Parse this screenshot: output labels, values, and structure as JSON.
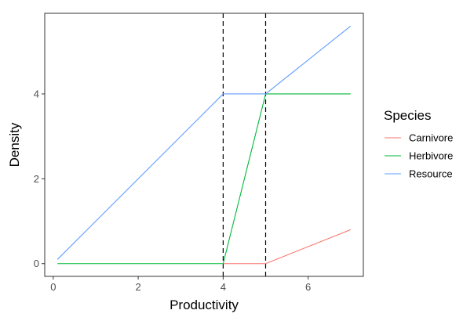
{
  "chart_data": {
    "type": "line",
    "title": "",
    "xlabel": "Productivity",
    "ylabel": "Density",
    "xlim": [
      -0.2,
      7.3
    ],
    "ylim": [
      -0.3,
      5.9
    ],
    "x_ticks": [
      0,
      2,
      4,
      6
    ],
    "y_ticks": [
      0,
      2,
      4
    ],
    "grid": false,
    "legend": {
      "title": "Species",
      "placement": "right"
    },
    "vlines": {
      "x": [
        4,
        5
      ],
      "style": "dashed",
      "color": "#000000"
    },
    "series": [
      {
        "name": "Carnivore",
        "color": "#F8766D",
        "points": [
          [
            4.0,
            0.0
          ],
          [
            5.0,
            0.0
          ],
          [
            7.0,
            0.8
          ]
        ]
      },
      {
        "name": "Herbivore",
        "color": "#00BA38",
        "points": [
          [
            0.1,
            0.0
          ],
          [
            4.0,
            0.0
          ],
          [
            5.0,
            4.0
          ],
          [
            7.0,
            4.0
          ]
        ]
      },
      {
        "name": "Resource",
        "color": "#619CFF",
        "points": [
          [
            0.1,
            0.1
          ],
          [
            4.0,
            4.0
          ],
          [
            5.0,
            4.0
          ],
          [
            7.0,
            5.6
          ]
        ]
      }
    ]
  }
}
